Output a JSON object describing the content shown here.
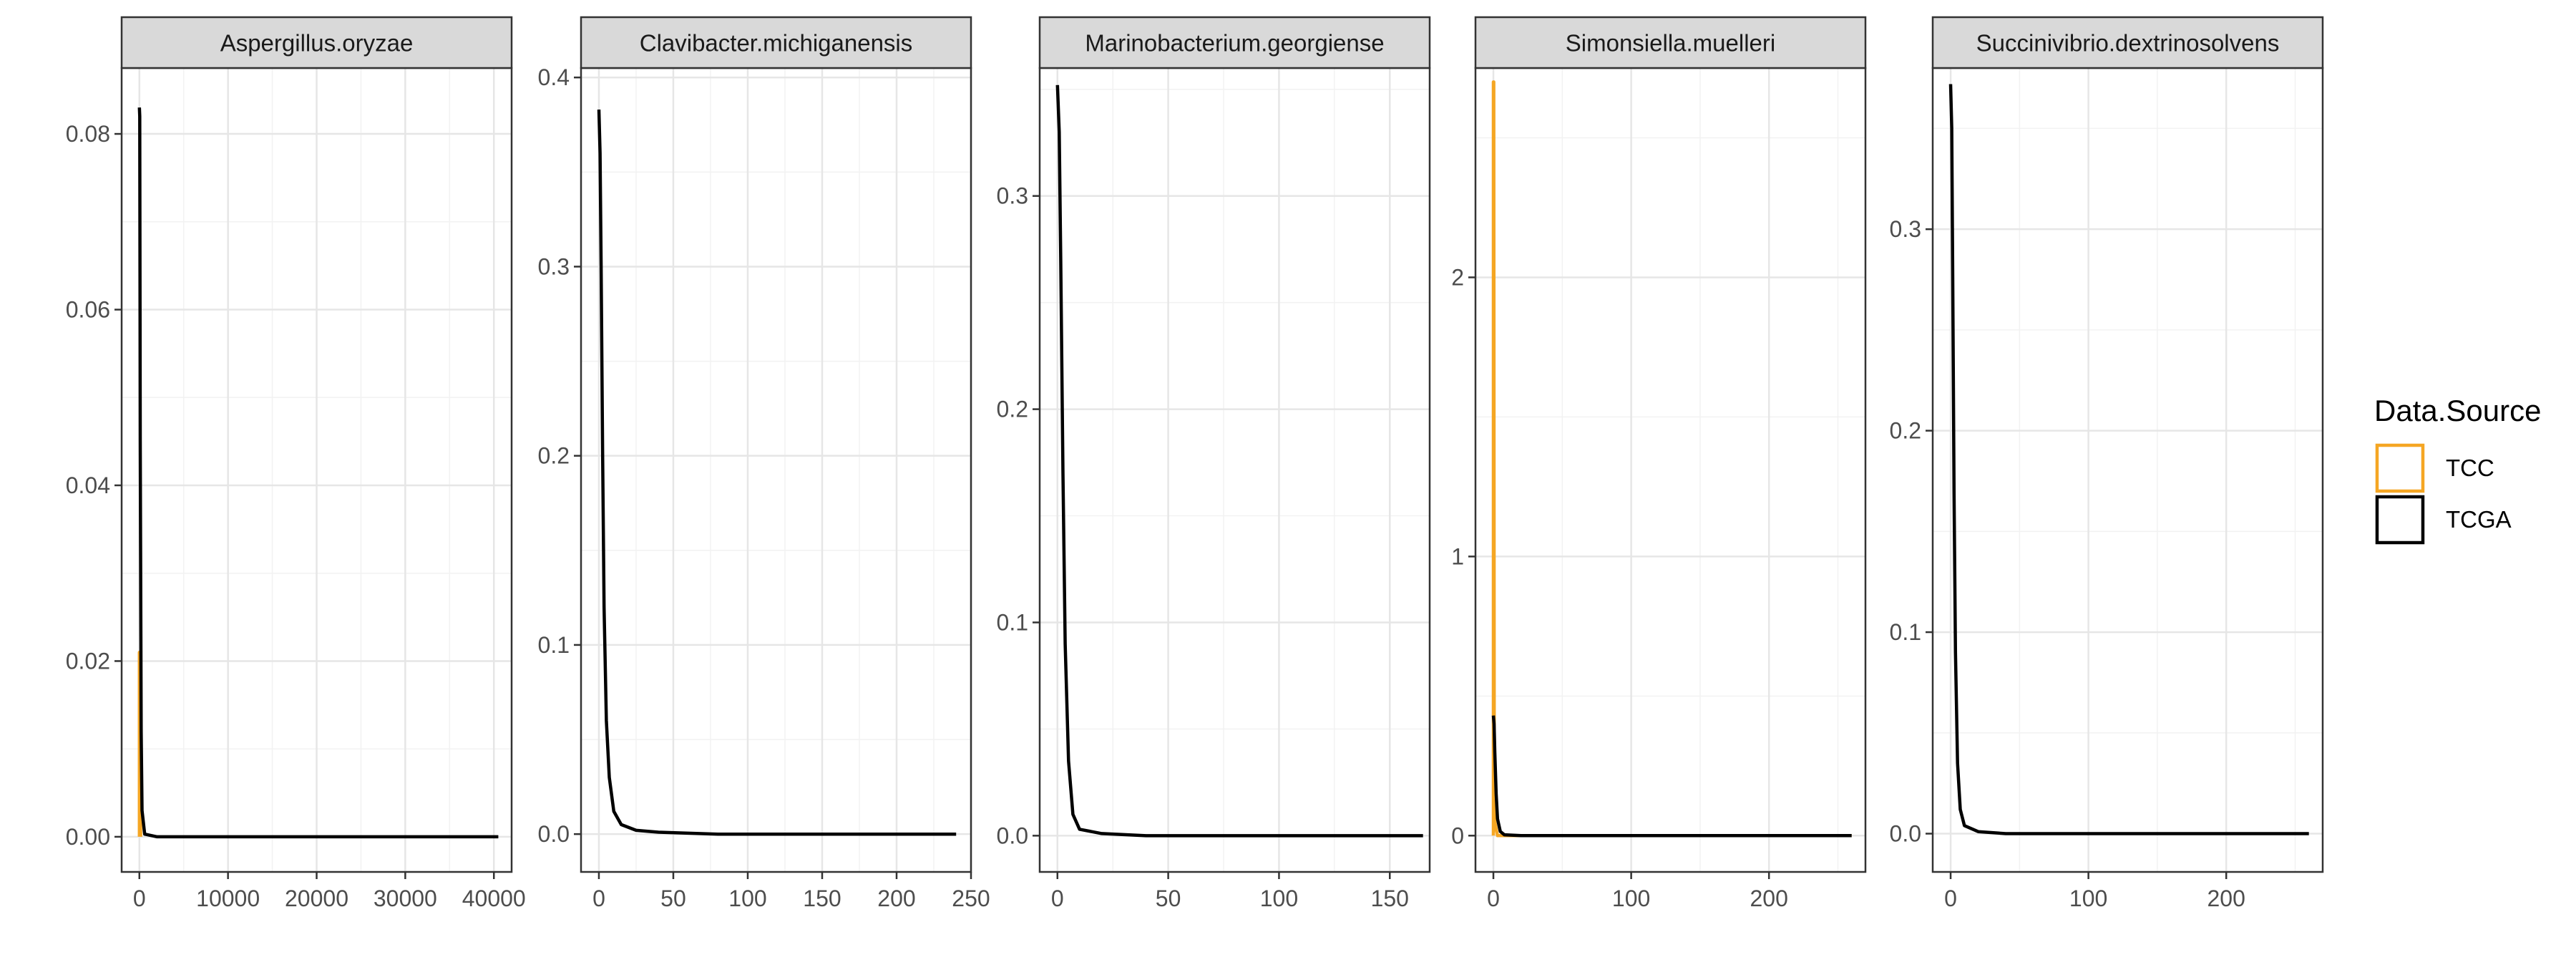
{
  "chart_data": {
    "type": "line",
    "subtype": "density-facets",
    "legend": {
      "title": "Data.Source",
      "position": "right",
      "entries": [
        {
          "name": "TCC",
          "color": "#f5a623"
        },
        {
          "name": "TCGA",
          "color": "#000000"
        }
      ]
    },
    "grid": true,
    "panels": [
      {
        "title": "Aspergillus.oryzae",
        "xlim": [
          -2000,
          42000
        ],
        "ylim": [
          -0.004,
          0.0875
        ],
        "xticks": [
          0,
          10000,
          20000,
          30000,
          40000
        ],
        "yticks": [
          0.0,
          0.02,
          0.04,
          0.06,
          0.08
        ],
        "xtick_labels": [
          "0",
          "10000",
          "20000",
          "30000",
          "40000"
        ],
        "ytick_labels": [
          "0.00",
          "0.02",
          "0.04",
          "0.06",
          "0.08"
        ],
        "series": [
          {
            "name": "TCC",
            "x": [
              0,
              0,
              150
            ],
            "y": [
              0.0,
              0.021,
              0.0
            ]
          },
          {
            "name": "TCGA",
            "x": [
              0,
              40,
              100,
              200,
              300,
              600,
              2000,
              40500
            ],
            "y": [
              0.083,
              0.082,
              0.045,
              0.012,
              0.003,
              0.0003,
              0.0,
              0.0
            ]
          }
        ]
      },
      {
        "title": "Clavibacter.michiganensis",
        "xlim": [
          -12,
          250
        ],
        "ylim": [
          -0.02,
          0.405
        ],
        "xticks": [
          0,
          50,
          100,
          150,
          200,
          250
        ],
        "yticks": [
          0.0,
          0.1,
          0.2,
          0.3,
          0.4
        ],
        "xtick_labels": [
          "0",
          "50",
          "100",
          "150",
          "200",
          "250"
        ],
        "ytick_labels": [
          "0.0",
          "0.1",
          "0.2",
          "0.3",
          "0.4"
        ],
        "series": [
          {
            "name": "TCGA",
            "x": [
              0,
              0.8,
              1.5,
              2.5,
              3.5,
              5,
              7,
              10,
              15,
              25,
              40,
              80,
              120,
              240
            ],
            "y": [
              0.383,
              0.36,
              0.3,
              0.2,
              0.12,
              0.06,
              0.03,
              0.012,
              0.005,
              0.002,
              0.001,
              0.0,
              0.0,
              0.0
            ]
          }
        ]
      },
      {
        "title": "Marinobacterium.georgiense",
        "xlim": [
          -8,
          168
        ],
        "ylim": [
          -0.017,
          0.36
        ],
        "xticks": [
          0,
          50,
          100,
          150
        ],
        "yticks": [
          0.0,
          0.1,
          0.2,
          0.3
        ],
        "xtick_labels": [
          "0",
          "50",
          "100",
          "150"
        ],
        "ytick_labels": [
          "0.0",
          "0.1",
          "0.2",
          "0.3"
        ],
        "series": [
          {
            "name": "TCGA",
            "x": [
              0,
              0.8,
              1.5,
              2.5,
              3.5,
              5,
              7,
              10,
              20,
              40,
              80,
              165
            ],
            "y": [
              0.352,
              0.33,
              0.27,
              0.17,
              0.09,
              0.035,
              0.01,
              0.003,
              0.001,
              0.0,
              0.0,
              0.0
            ]
          }
        ]
      },
      {
        "title": "Simonsiella.muelleri",
        "xlim": [
          -13,
          270
        ],
        "ylim": [
          -0.13,
          2.75
        ],
        "xticks": [
          0,
          100,
          200
        ],
        "yticks": [
          0,
          1,
          2
        ],
        "xtick_labels": [
          "0",
          "100",
          "200"
        ],
        "ytick_labels": [
          "0",
          "1",
          "2"
        ],
        "series": [
          {
            "name": "TCC",
            "x": [
              0,
              0,
              0.3,
              0.6,
              1,
              3,
              260
            ],
            "y": [
              0.0,
              2.7,
              2.7,
              0.4,
              0.05,
              0.0,
              0.0
            ]
          },
          {
            "name": "TCGA",
            "x": [
              0,
              0.5,
              1,
              2,
              3,
              5,
              8,
              20,
              260
            ],
            "y": [
              0.43,
              0.4,
              0.3,
              0.15,
              0.06,
              0.015,
              0.003,
              0.0,
              0.0
            ]
          }
        ]
      },
      {
        "title": "Succinivibrio.dextrinosolvens",
        "xlim": [
          -13,
          270
        ],
        "ylim": [
          -0.019,
          0.38
        ],
        "xticks": [
          0,
          100,
          200
        ],
        "yticks": [
          0.0,
          0.1,
          0.2,
          0.3
        ],
        "xtick_labels": [
          "0",
          "100",
          "200"
        ],
        "ytick_labels": [
          "0.0",
          "0.1",
          "0.2",
          "0.3"
        ],
        "series": [
          {
            "name": "TCGA",
            "x": [
              0,
              0.8,
              1.5,
              2.5,
              3.5,
              5,
              7,
              10,
              20,
              40,
              80,
              260
            ],
            "y": [
              0.372,
              0.35,
              0.28,
              0.17,
              0.09,
              0.035,
              0.012,
              0.004,
              0.001,
              0.0,
              0.0,
              0.0
            ]
          }
        ]
      }
    ]
  }
}
